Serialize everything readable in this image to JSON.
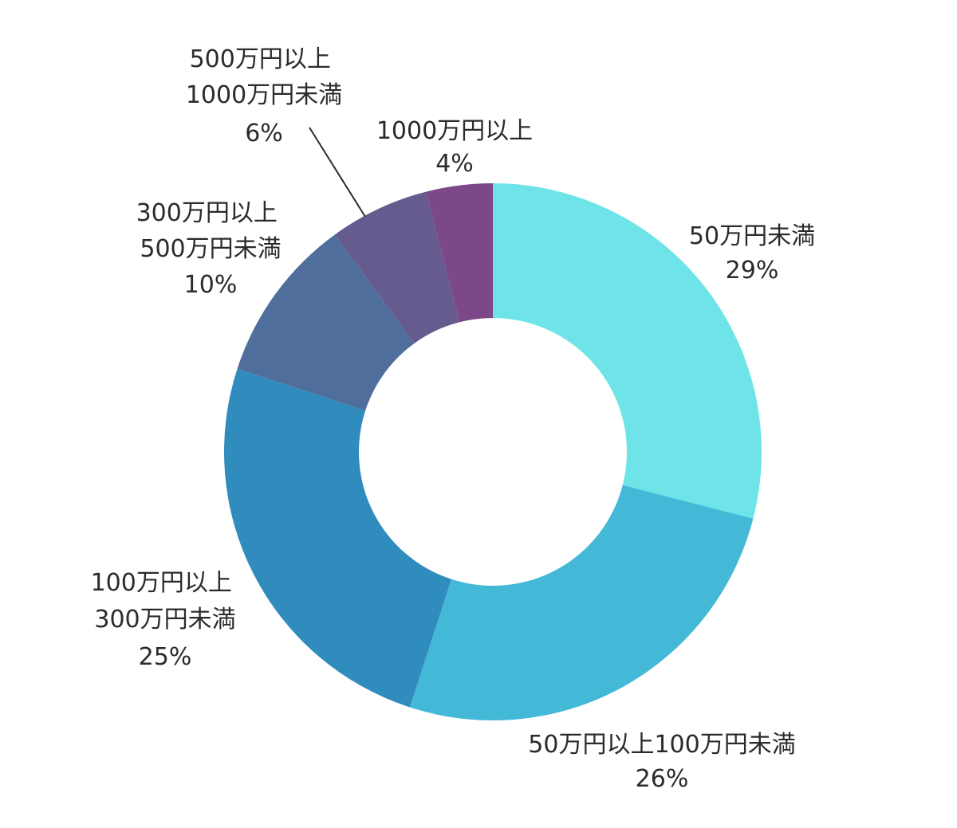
{
  "chart_data": {
    "type": "pie",
    "donut": true,
    "title": "",
    "slices": [
      {
        "name": "50万円未満",
        "value": 29,
        "value_label": "29%",
        "color": "#6ee4e9"
      },
      {
        "name": "50万円以上100万円未満",
        "value": 26,
        "value_label": "26%",
        "color": "#43b8d7"
      },
      {
        "name": "100万円以上300万円未満",
        "value": 25,
        "value_label": "25%",
        "color": "#308cbd"
      },
      {
        "name": "300万円以上500万円未満",
        "value": 10,
        "value_label": "10%",
        "color": "#4f6e9b"
      },
      {
        "name": "500万円以上1000万円未満",
        "value": 6,
        "value_label": "6%",
        "color": "#655b8f"
      },
      {
        "name": "1000万円以上",
        "value": 4,
        "value_label": "4%",
        "color": "#7c4887"
      }
    ]
  }
}
